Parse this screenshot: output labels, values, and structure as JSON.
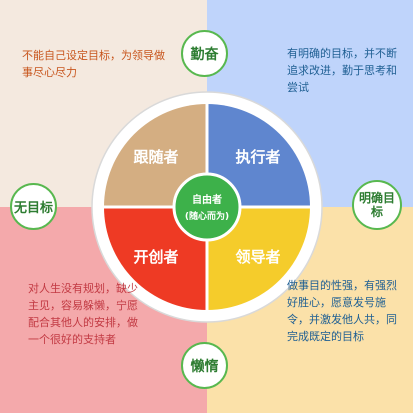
{
  "colors": {
    "bg_top_left": "#f4e9df",
    "bg_top_right": "#bfd4fb",
    "bg_bottom_left": "#f4a9ab",
    "bg_bottom_right": "#fbe1a9",
    "quad_follower": "#d4ae82",
    "quad_executor": "#5f86cf",
    "quad_pioneer": "#ee3a24",
    "quad_leader": "#f5cc2b",
    "center": "#3db14a",
    "bubble_border": "#58b84f"
  },
  "quadrants": {
    "follower": "跟随者",
    "executor": "执行者",
    "pioneer": "开创者",
    "leader": "领导者"
  },
  "center": {
    "line1": "自由者",
    "line2": "(随心而为)"
  },
  "bubbles": {
    "top": "勤奋",
    "bottom": "懒惰",
    "left": "无目标",
    "right": "明确目标"
  },
  "notes": {
    "top_left": "不能自己设定目标，为领导做事尽心尽力",
    "top_right": "有明确的目标，并不断追求改进，勤于思考和尝试",
    "bottom_left": "对人生没有规划，缺少主见，容易躲懒，宁愿配合其他人的安排，做一个很好的支持者",
    "bottom_right": "做事目的性强，有强烈好胜心，愿意发号施令，并激发他人共，同完成既定的目标"
  }
}
